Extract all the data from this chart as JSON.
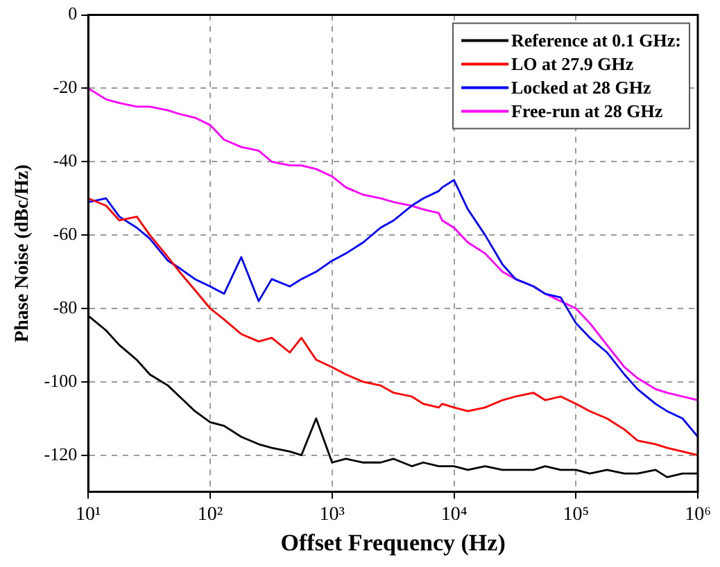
{
  "chart_data": {
    "type": "line",
    "xlabel": "Offset Frequency (Hz)",
    "ylabel": "Phase Noise (dBc/Hz)",
    "log": "x",
    "xlim": [
      10,
      1000000
    ],
    "xticks": [
      {
        "value": 10,
        "label": "10¹"
      },
      {
        "value": 100,
        "label": "10²"
      },
      {
        "value": 1000,
        "label": "10³"
      },
      {
        "value": 10000,
        "label": "10⁴"
      },
      {
        "value": 100000,
        "label": "10⁵"
      },
      {
        "value": 1000000,
        "label": "10⁶"
      }
    ],
    "ylim": [
      -130,
      0
    ],
    "yticks": [
      0,
      -20,
      -40,
      -60,
      -80,
      -100,
      -120
    ],
    "grid": true,
    "legend": "top right",
    "marker": "none",
    "line_style": "solid",
    "x": [
      10,
      14,
      18,
      25,
      32,
      45,
      56,
      75,
      100,
      130,
      180,
      250,
      320,
      450,
      560,
      740,
      1000,
      1300,
      1800,
      2500,
      3200,
      4500,
      5600,
      7500,
      8000,
      10000,
      13000,
      18000,
      25000,
      32000,
      45000,
      56000,
      75000,
      100000,
      130000,
      180000,
      250000,
      320000,
      450000,
      560000,
      750000,
      1000000
    ],
    "series": [
      {
        "name": "Reference at 0.1 GHz:",
        "color": "#000000",
        "values": [
          -82,
          -86,
          -90,
          -94,
          -98,
          -101,
          -104,
          -108,
          -111,
          -112,
          -115,
          -117,
          -118,
          -119,
          -120,
          -110,
          -122,
          -121,
          -122,
          -122,
          -121,
          -123,
          -122,
          -123,
          -123,
          -123,
          -124,
          -123,
          -124,
          -124,
          -124,
          -123,
          -124,
          -124,
          -125,
          -124,
          -125,
          -125,
          -124,
          -126,
          -125,
          -125
        ]
      },
      {
        "name": "LO at 27.9 GHz",
        "color": "#ff0000",
        "values": [
          -50,
          -52,
          -56,
          -55,
          -60,
          -66,
          -70,
          -75,
          -80,
          -83,
          -87,
          -89,
          -88,
          -92,
          -88,
          -94,
          -96,
          -98,
          -100,
          -101,
          -103,
          -104,
          -106,
          -107,
          -106,
          -107,
          -108,
          -107,
          -105,
          -104,
          -103,
          -105,
          -104,
          -106,
          -108,
          -110,
          -113,
          -116,
          -117,
          -118,
          -119,
          -120
        ]
      },
      {
        "name": "Locked at 28 GHz",
        "color": "#0000ff",
        "values": [
          -51,
          -50,
          -55,
          -58,
          -61,
          -67,
          -69,
          -72,
          -74,
          -76,
          -66,
          -78,
          -72,
          -74,
          -72,
          -70,
          -67,
          -65,
          -62,
          -58,
          -56,
          -52,
          -50,
          -48,
          -47,
          -45,
          -53,
          -60,
          -68,
          -72,
          -74,
          -76,
          -77,
          -84,
          -88,
          -92,
          -98,
          -102,
          -106,
          -108,
          -110,
          -115
        ]
      },
      {
        "name": "Free-run at 28 GHz",
        "color": "#ff00ff",
        "values": [
          -20,
          -23,
          -24,
          -25,
          -25,
          -26,
          -27,
          -28,
          -30,
          -34,
          -36,
          -37,
          -40,
          -41,
          -41,
          -42,
          -44,
          -47,
          -49,
          -50,
          -51,
          -52,
          -53,
          -54,
          -56,
          -58,
          -62,
          -65,
          -70,
          -72,
          -74,
          -76,
          -78,
          -80,
          -84,
          -90,
          -96,
          -99,
          -102,
          -103,
          -104,
          -105
        ]
      }
    ]
  }
}
